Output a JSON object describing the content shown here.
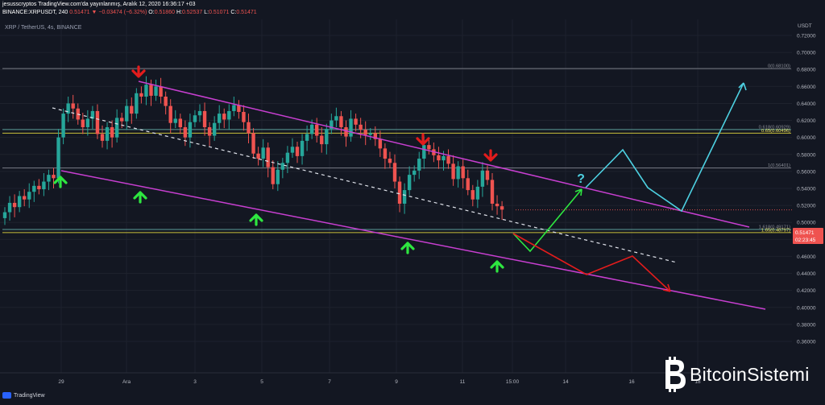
{
  "header": {
    "line1": "jesusscryptos TradingView.com'da yayınlanmış, Aralık 12, 2020 16:36:17 +03",
    "ticker": "BINANCE:XRPUSDT, 240",
    "last": "0.51471",
    "change": "−0.03474 (−6.32%)",
    "o": "0.51860",
    "h": "0.52537",
    "l": "0.51071",
    "c": "0.51471"
  },
  "symbol_title": "XRP / TetherUS, 4s, BINANCE",
  "branding": {
    "tradingview": "TradingView",
    "watermark": "BitcoinSistemi"
  },
  "colors": {
    "bg": "#131722",
    "up": "#26a69a",
    "down": "#ef5350",
    "channel": "#c83fd1",
    "cyan": "#4dd0e1",
    "green": "#2ee640",
    "red": "#e31c1c"
  },
  "chart_data": {
    "type": "candlestick",
    "currency": "USDT",
    "ylim": [
      0.37,
      0.745
    ],
    "y_ticks": [
      "0.72000",
      "0.70000",
      "0.68000",
      "0.66000",
      "0.64000",
      "0.62000",
      "0.60000",
      "0.58000",
      "0.56000",
      "0.54000",
      "0.52000",
      "0.50000",
      "0.48000",
      "0.46000",
      "0.44000",
      "0.42000",
      "0.40000",
      "0.38000",
      "0.36000"
    ],
    "x_ticks": [
      "29",
      "Ara",
      "3",
      "5",
      "7",
      "9",
      "11",
      "15:00",
      "14",
      "16",
      "18"
    ],
    "price_tag": "0.51471",
    "countdown": "02:23:45",
    "fib_levels": [
      {
        "label": "0(0.68100)",
        "value": 0.681
      },
      {
        "label": "0.618(0.60929)",
        "value": 0.6093
      },
      {
        "label": "0.65(0.60496)",
        "value": 0.605
      },
      {
        "label": "1(0.56401)",
        "value": 0.564
      },
      {
        "label": "1.618(0.49171)",
        "value": 0.4917
      },
      {
        "label": "1.65(0.48797)",
        "value": 0.488
      }
    ],
    "closes": [
      0.512,
      0.523,
      0.518,
      0.531,
      0.527,
      0.536,
      0.543,
      0.539,
      0.548,
      0.556,
      0.552,
      0.6,
      0.628,
      0.64,
      0.634,
      0.621,
      0.612,
      0.622,
      0.631,
      0.604,
      0.596,
      0.612,
      0.6,
      0.623,
      0.619,
      0.637,
      0.628,
      0.652,
      0.648,
      0.662,
      0.649,
      0.66,
      0.648,
      0.637,
      0.617,
      0.622,
      0.612,
      0.6,
      0.618,
      0.626,
      0.631,
      0.612,
      0.602,
      0.617,
      0.628,
      0.621,
      0.631,
      0.638,
      0.63,
      0.618,
      0.605,
      0.581,
      0.575,
      0.588,
      0.565,
      0.545,
      0.562,
      0.57,
      0.582,
      0.589,
      0.578,
      0.596,
      0.604,
      0.615,
      0.602,
      0.592,
      0.61,
      0.62,
      0.625,
      0.612,
      0.601,
      0.622,
      0.615,
      0.609,
      0.603,
      0.605,
      0.598,
      0.587,
      0.575,
      0.57,
      0.548,
      0.522,
      0.538,
      0.556,
      0.561,
      0.575,
      0.591,
      0.586,
      0.579,
      0.573,
      0.578,
      0.569,
      0.551,
      0.566,
      0.552,
      0.538,
      0.527,
      0.542,
      0.561,
      0.55,
      0.522,
      0.519,
      0.515
    ]
  }
}
